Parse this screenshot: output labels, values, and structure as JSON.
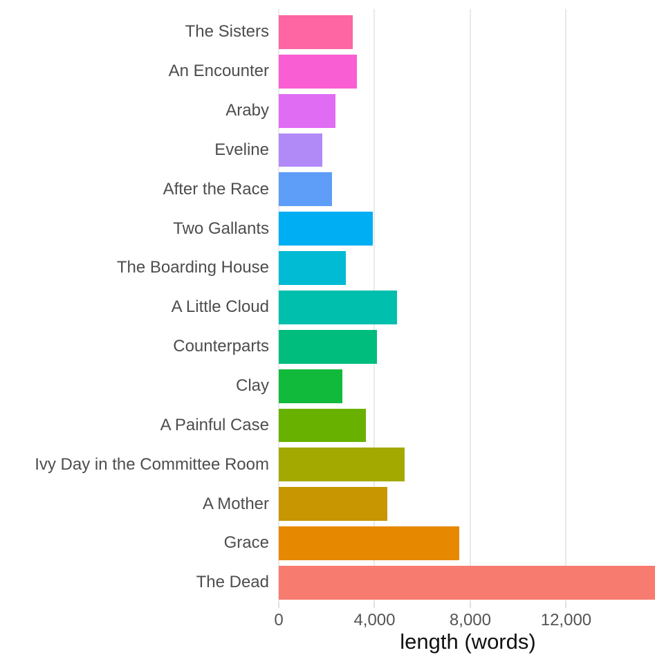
{
  "chart_data": {
    "type": "bar",
    "orientation": "horizontal",
    "title": "",
    "xlabel": "length (words)",
    "ylabel": "",
    "categories": [
      "The Sisters",
      "An Encounter",
      "Araby",
      "Eveline",
      "After the Race",
      "Two Gallants",
      "The Boarding House",
      "A Little Cloud",
      "Counterparts",
      "Clay",
      "A Painful Case",
      "Ivy Day in the Committee Room",
      "A Mother",
      "Grace",
      "The Dead"
    ],
    "values": [
      3090,
      3255,
      2355,
      1820,
      2225,
      3915,
      2800,
      4925,
      4110,
      2660,
      3630,
      5245,
      4530,
      7535,
      15720
    ],
    "colors": [
      "#FD66A3",
      "#FA5ED3",
      "#E06CF3",
      "#B18AF8",
      "#5E9DF8",
      "#00AEF3",
      "#00BBD3",
      "#00BFAD",
      "#00BD7E",
      "#12BA3C",
      "#69B100",
      "#A4A900",
      "#C79600",
      "#E78900",
      "#F87B6F"
    ],
    "xlim": [
      0,
      15800
    ],
    "x_ticks": [
      {
        "value": 0,
        "label": "0"
      },
      {
        "value": 4000,
        "label": "4,000"
      },
      {
        "value": 8000,
        "label": "8,000"
      },
      {
        "value": 12000,
        "label": "12,000"
      }
    ],
    "grid": "vertical-only",
    "legend": "none",
    "style": {
      "background_color": "#FFFFFF",
      "gridline_color": "#E9E9E9",
      "tick_color": "#E0E0E0",
      "tick_label_color": "#545454",
      "category_label_color": "#4D4D4D",
      "axis_title_color": "#111111"
    }
  }
}
